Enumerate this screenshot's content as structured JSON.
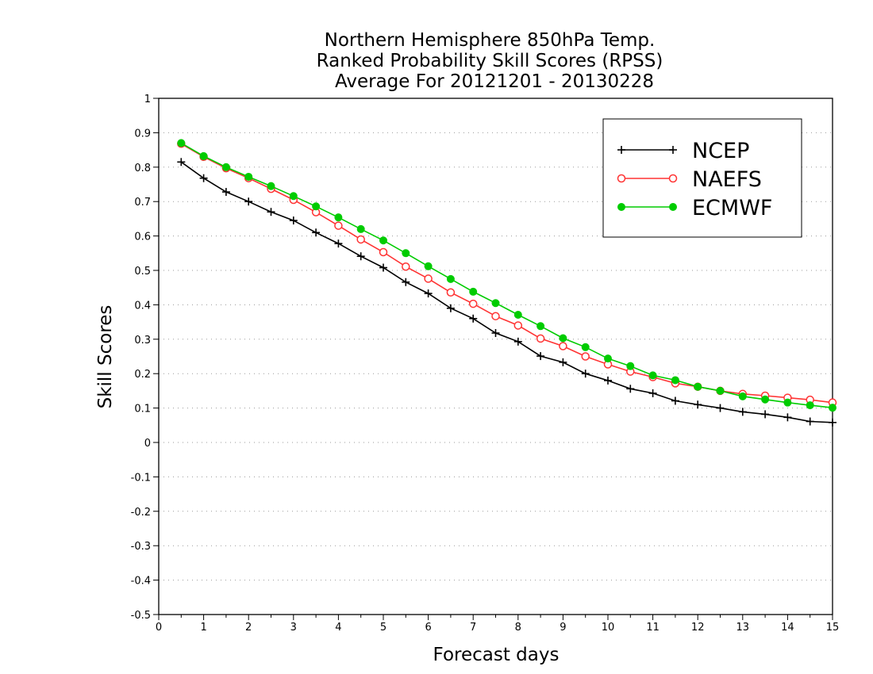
{
  "chart_data": {
    "type": "line",
    "title": [
      "Northern Hemisphere 850hPa Temp.",
      "Ranked Probability Skill Scores (RPSS)",
      "Average For 20121201 - 20130228"
    ],
    "xlabel": "Forecast days",
    "ylabel": "Skill Scores",
    "xlim": [
      0,
      15
    ],
    "ylim": [
      -0.5,
      1
    ],
    "xticks": [
      "0",
      "1",
      "2",
      "3",
      "4",
      "5",
      "6",
      "7",
      "8",
      "9",
      "10",
      "11",
      "12",
      "13",
      "14",
      "15"
    ],
    "yticks": [
      "-0.5",
      "-0.4",
      "-0.3",
      "-0.2",
      "-0.1",
      "0",
      "0.1",
      "0.2",
      "0.3",
      "0.4",
      "0.5",
      "0.6",
      "0.7",
      "0.8",
      "0.9",
      "1"
    ],
    "grid": "horizontal dotted",
    "legend_position": "top-right",
    "x": [
      0.5,
      1,
      1.5,
      2,
      2.5,
      3,
      3.5,
      4,
      4.5,
      5,
      5.5,
      6,
      6.5,
      7,
      7.5,
      8,
      8.5,
      9,
      9.5,
      10,
      10.5,
      11,
      11.5,
      12,
      12.5,
      13,
      13.5,
      14,
      14.5,
      15
    ],
    "series": [
      {
        "name": "NCEP",
        "color": "#000000",
        "marker": "plus",
        "values": [
          0.815,
          0.768,
          0.728,
          0.7,
          0.67,
          0.645,
          0.61,
          0.578,
          0.541,
          0.508,
          0.466,
          0.433,
          0.39,
          0.36,
          0.318,
          0.293,
          0.251,
          0.233,
          0.2,
          0.18,
          0.156,
          0.143,
          0.121,
          0.11,
          0.1,
          0.089,
          0.082,
          0.073,
          0.061,
          0.058
        ]
      },
      {
        "name": "NAEFS",
        "color": "#ff3333",
        "marker": "open-circle",
        "values": [
          0.868,
          0.83,
          0.797,
          0.768,
          0.737,
          0.705,
          0.669,
          0.63,
          0.59,
          0.553,
          0.511,
          0.476,
          0.436,
          0.403,
          0.367,
          0.34,
          0.302,
          0.28,
          0.25,
          0.227,
          0.206,
          0.19,
          0.172,
          0.162,
          0.15,
          0.141,
          0.136,
          0.13,
          0.124,
          0.116
        ]
      },
      {
        "name": "ECMWF",
        "color": "#00cc00",
        "marker": "filled-circle",
        "values": [
          0.87,
          0.832,
          0.8,
          0.772,
          0.745,
          0.716,
          0.686,
          0.654,
          0.62,
          0.587,
          0.55,
          0.512,
          0.475,
          0.438,
          0.405,
          0.371,
          0.338,
          0.303,
          0.277,
          0.244,
          0.222,
          0.195,
          0.181,
          0.162,
          0.15,
          0.134,
          0.125,
          0.116,
          0.108,
          0.101
        ]
      }
    ]
  }
}
